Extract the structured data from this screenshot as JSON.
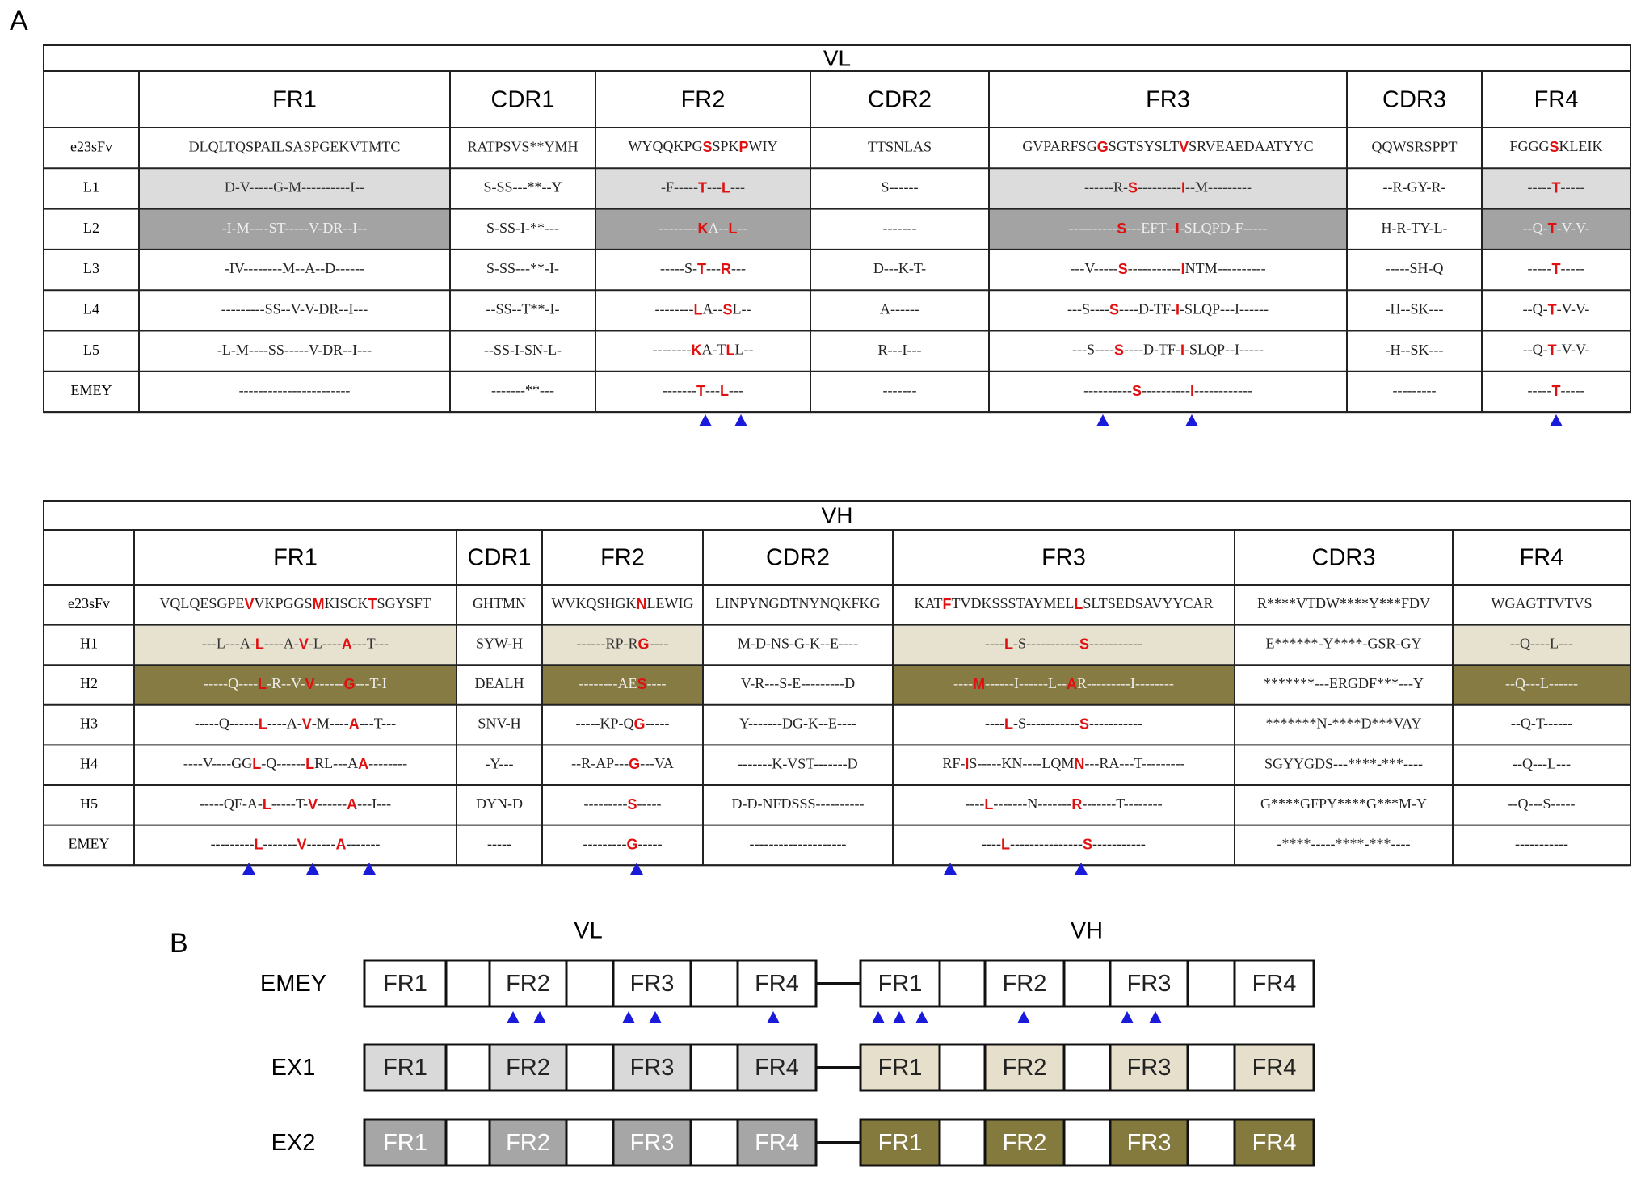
{
  "panel_a": {
    "label": "A",
    "vl": {
      "title": "VL",
      "columns": [
        "FR1",
        "CDR1",
        "FR2",
        "CDR2",
        "FR3",
        "CDR3",
        "FR4"
      ],
      "rows": [
        {
          "label": "e23sFv",
          "cells": [
            "DLQLTQSPAILSASPGEKVTMTC",
            "RATPSVS**YMH",
            [
              "WYQQKPG",
              "S",
              "SPK",
              "P",
              "WIY"
            ],
            "TTSNLAS",
            [
              "GVPARFSG",
              "G",
              "SGTSYSLT",
              "V",
              "SRVEAEDAATYYC"
            ],
            "QQWSRSPPT",
            [
              "FGGG",
              "S",
              "KLEIK"
            ]
          ]
        },
        {
          "label": "L1",
          "cells": [
            "D-V-----G-M----------I--",
            "S-SS---**--Y",
            [
              "-F-----",
              "T",
              "---",
              "L",
              "---"
            ],
            "S------",
            [
              "------R-",
              "S",
              "---------",
              "I",
              "--M---------"
            ],
            "--R-GY-R-",
            [
              "-----",
              "T",
              "-----"
            ]
          ]
        },
        {
          "label": "L2",
          "cells": [
            "-I-M----ST-----V-DR--I--",
            "S-SS-I-**---",
            [
              "--------",
              "K",
              "A--",
              "L",
              "--"
            ],
            "-------",
            [
              "----------",
              "S",
              "---EFT--",
              "I",
              "-SLQPD-F-----"
            ],
            "H-R-TY-L-",
            [
              "--Q-",
              "T",
              "-V-V-"
            ]
          ]
        },
        {
          "label": "L3",
          "cells": [
            "-IV--------M--A--D------",
            "S-SS---**-I-",
            [
              "-----S-",
              "T",
              "---",
              "R",
              "---"
            ],
            "D---K-T-",
            [
              "---V-----",
              "S",
              "-----------",
              "I",
              "NTM----------"
            ],
            "-----SH-Q",
            [
              "-----",
              "T",
              "-----"
            ]
          ]
        },
        {
          "label": "L4",
          "cells": [
            "---------SS--V-V-DR--I---",
            "--SS--T**-I-",
            [
              "--------",
              "L",
              "A--",
              "S",
              "L--"
            ],
            "A------",
            [
              "---S----",
              "S",
              "----D-TF-",
              "I",
              "-SLQP---I------"
            ],
            "-H--SK---",
            [
              "--Q-",
              "T",
              "-V-V-"
            ]
          ]
        },
        {
          "label": "L5",
          "cells": [
            "-L-M----SS-----V-DR--I---",
            "--SS-I-SN-L-",
            [
              "--------",
              "K",
              "A-T",
              "L",
              "L--"
            ],
            "R---I---",
            [
              "---S----",
              "S",
              "----D-TF-",
              "I",
              "-SLQP--I-----"
            ],
            "-H--SK---",
            [
              "--Q-",
              "T",
              "-V-V-"
            ]
          ]
        },
        {
          "label": "EMEY",
          "cells": [
            "-----------------------",
            "-------**---",
            [
              "-------",
              "T",
              "---",
              "L",
              "---"
            ],
            "-------",
            [
              "----------",
              "S",
              "----------",
              "I",
              "------------"
            ],
            "---------",
            [
              "-----",
              "T",
              "-----"
            ]
          ]
        }
      ]
    },
    "vh": {
      "title": "VH",
      "columns": [
        "FR1",
        "CDR1",
        "FR2",
        "CDR2",
        "FR3",
        "CDR3",
        "FR4"
      ],
      "rows": [
        {
          "label": "e23sFv",
          "cells": [
            [
              "VQLQESGPE",
              "V",
              "VKPGGS",
              "M",
              "KISCK",
              "T",
              "SGYSFT"
            ],
            "GHTMN",
            [
              "WVKQSHGK",
              "N",
              "LEWIG"
            ],
            "LINPYNGDTNYNQKFKG",
            [
              "KAT",
              "F",
              "TVDKSSSTAYMEL",
              "L",
              "SLTSEDSAVYYCAR"
            ],
            "R****VTDW****Y***FDV",
            "WGAGTTVTVS"
          ]
        },
        {
          "label": "H1",
          "cells": [
            [
              "---L---A-",
              "L",
              "----A-",
              "V",
              "-L----",
              "A",
              "---T---"
            ],
            "SYW-H",
            [
              "------RP-R",
              "G",
              "----"
            ],
            "M-D-NS-G-K--E----",
            [
              "----",
              "L",
              "-S-----------",
              "S",
              "-----------"
            ],
            "E******-Y****-GSR-GY",
            "--Q----L---"
          ]
        },
        {
          "label": "H2",
          "cells": [
            [
              "-----Q----",
              "L",
              "-R--V-",
              "V",
              "------",
              "G",
              "---T-I"
            ],
            "DEALH",
            [
              "--------AE",
              "S",
              "----"
            ],
            "V-R---S-E---------D",
            [
              "----",
              "M",
              "------I------L--",
              "A",
              "R---------I--------"
            ],
            "*******---ERGDF***---Y",
            "--Q---L------"
          ]
        },
        {
          "label": "H3",
          "cells": [
            [
              "-----Q------",
              "L",
              "----A-",
              "V",
              "-M----",
              "A",
              "---T---"
            ],
            "SNV-H",
            [
              "-----KP-Q",
              "G",
              "-----"
            ],
            "Y-------DG-K--E----",
            [
              "----",
              "L",
              "-S-----------",
              "S",
              "-----------"
            ],
            "*******N-****D***VAY",
            "--Q-T------"
          ]
        },
        {
          "label": "H4",
          "cells": [
            [
              "----V----GG",
              "L",
              "-Q------",
              "L",
              "RL---A",
              "A",
              "--------"
            ],
            "-Y---",
            [
              "--R-AP---",
              "G",
              "---VA"
            ],
            "-------K-VST-------D",
            [
              "RF-",
              "I",
              "S-----KN----LQM",
              "N",
              "---RA---T---------"
            ],
            "SGYYGDS---****-***----",
            "--Q---L---"
          ]
        },
        {
          "label": "H5",
          "cells": [
            [
              "-----QF-A-",
              "L",
              "-----T-",
              "V",
              "------",
              "A",
              "---I---"
            ],
            "DYN-D",
            [
              "---------",
              "S",
              "-----"
            ],
            "D-D-NFDSSS----------",
            [
              "----",
              "L",
              "-------N-------",
              "R",
              "-------T--------"
            ],
            "G****GFPY****G***M-Y",
            "--Q---S-----"
          ]
        },
        {
          "label": "EMEY",
          "cells": [
            [
              "---------",
              "L",
              "-------",
              "V",
              "------",
              "A",
              "-------"
            ],
            "-----",
            [
              "---------",
              "G",
              "-----"
            ],
            "--------------------",
            [
              "----",
              "L",
              "---------------",
              "S",
              "-----------"
            ],
            "-****-----****-***----",
            "-----------"
          ]
        }
      ]
    }
  },
  "panel_b": {
    "label": "B",
    "groups": [
      "VL",
      "VH"
    ],
    "rows": [
      "EMEY",
      "EX1",
      "EX2"
    ],
    "segments": [
      "FR1",
      "FR2",
      "FR3",
      "FR4"
    ]
  }
}
